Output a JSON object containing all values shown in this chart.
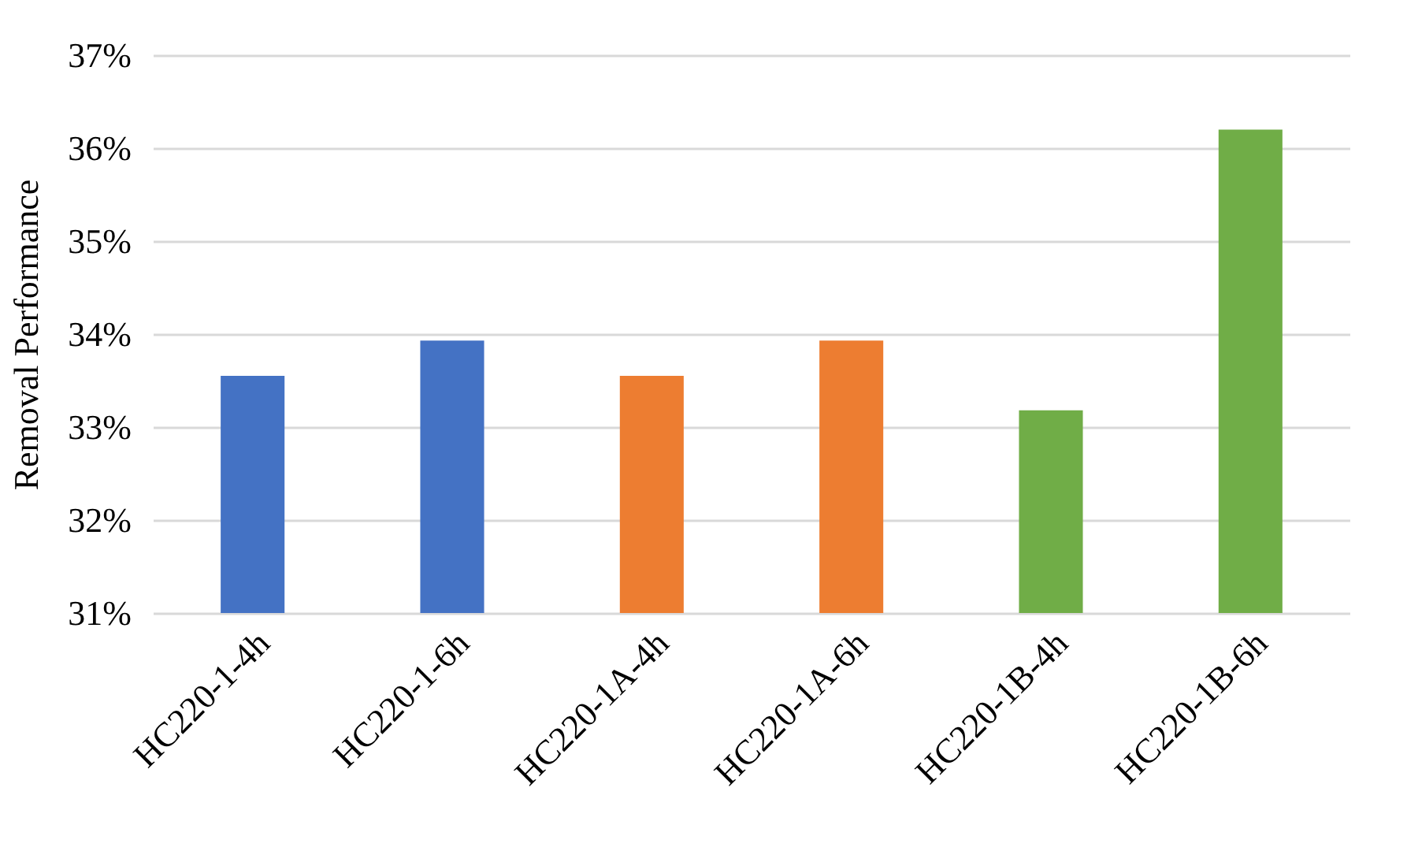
{
  "chart_data": {
    "type": "bar",
    "ylabel": "Removal Performance",
    "categories": [
      "HC220-1-4h",
      "HC220-1-6h",
      "HC220-1A-4h",
      "HC220-1A-6h",
      "HC220-1B-4h",
      "HC220-1B-6h"
    ],
    "values": [
      33.55,
      33.93,
      33.55,
      33.93,
      33.18,
      36.2
    ],
    "colors": [
      "#4472c4",
      "#4472c4",
      "#ed7d31",
      "#ed7d31",
      "#70ad47",
      "#70ad47"
    ],
    "ylim": [
      31,
      37
    ],
    "yticks": [
      {
        "value": 31,
        "label": "31%"
      },
      {
        "value": 32,
        "label": "32%"
      },
      {
        "value": 33,
        "label": "33%"
      },
      {
        "value": 34,
        "label": "34%"
      },
      {
        "value": 35,
        "label": "35%"
      },
      {
        "value": 36,
        "label": "36%"
      },
      {
        "value": 37,
        "label": "37%"
      }
    ],
    "grid": "y"
  }
}
